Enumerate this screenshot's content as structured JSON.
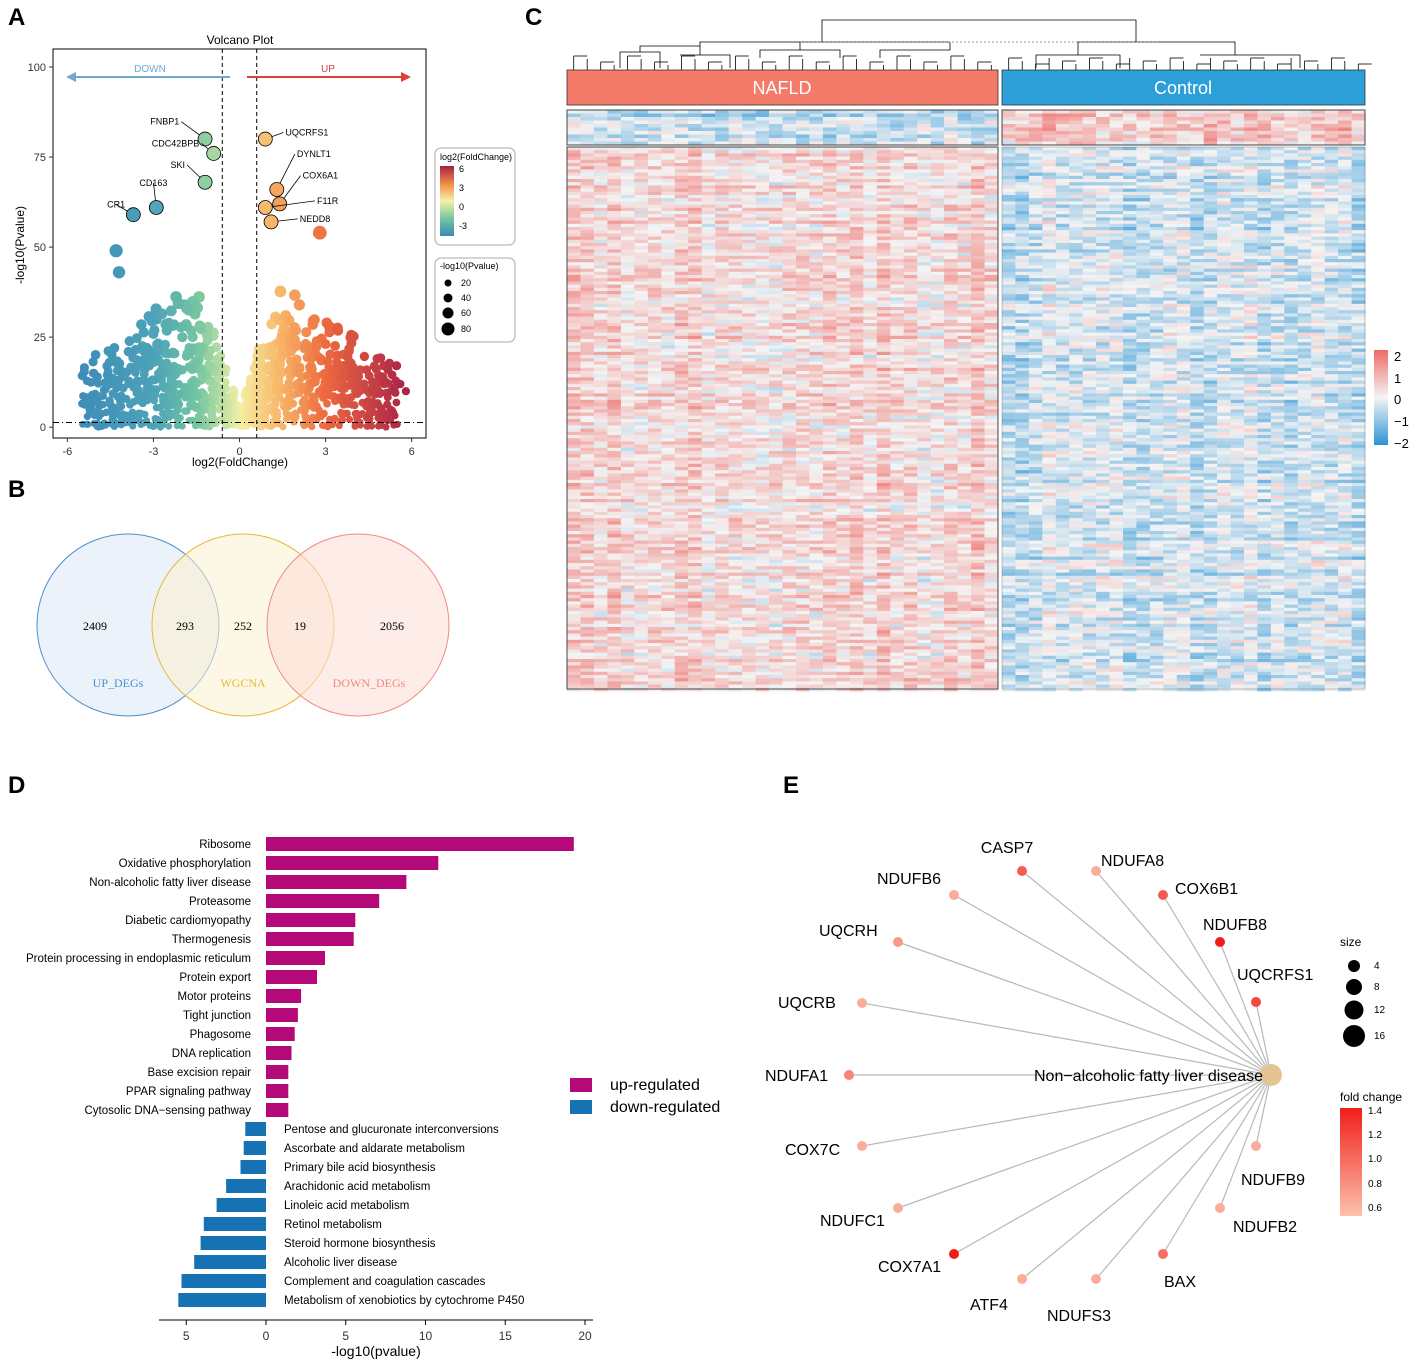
{
  "panels": {
    "a": "A",
    "b": "B",
    "c": "C",
    "d": "D",
    "e": "E"
  },
  "chart_data": [
    {
      "type": "scatter",
      "panel": "A",
      "title": "Volcano Plot",
      "xlabel": "log2(FoldChange)",
      "ylabel": "-log10(Pvalue)",
      "xlim": [
        -6.5,
        6.5
      ],
      "ylim": [
        -3,
        105
      ],
      "xticks": [
        "-6",
        "-3",
        "0",
        "3",
        "6"
      ],
      "yticks": [
        "0",
        "25",
        "50",
        "75",
        "100"
      ],
      "down_label": "DOWN",
      "up_label": "UP",
      "color_legend": {
        "title": "log2(FoldChange)",
        "ticks": [
          "6",
          "3",
          "0",
          "-3"
        ]
      },
      "size_legend": {
        "title": "-log10(Pvalue)",
        "ticks": [
          "20",
          "40",
          "60",
          "80"
        ]
      },
      "thresholds": {
        "fc": [
          -0.6,
          0.6
        ],
        "p": 1.3
      },
      "labeled_genes": [
        {
          "name": "FNBP1",
          "x": -1.2,
          "y": 80,
          "fc": -1.2
        },
        {
          "name": "CDC42BPB",
          "x": -0.9,
          "y": 76,
          "fc": -0.9
        },
        {
          "name": "SKI",
          "x": -1.2,
          "y": 68,
          "fc": -1.2
        },
        {
          "name": "CD163",
          "x": -2.9,
          "y": 61,
          "fc": -2.9
        },
        {
          "name": "CR1",
          "x": -3.7,
          "y": 59,
          "fc": -3.7
        },
        {
          "name": "UQCRFS1",
          "x": 0.9,
          "y": 80,
          "fc": 1.2
        },
        {
          "name": "DYNLT1",
          "x": 1.3,
          "y": 66,
          "fc": 1.8
        },
        {
          "name": "COX6A1",
          "x": 1.4,
          "y": 62,
          "fc": 1.9
        },
        {
          "name": "F11R",
          "x": 0.9,
          "y": 61,
          "fc": 1.4
        },
        {
          "name": "NEDD8",
          "x": 1.1,
          "y": 57,
          "fc": 1.5
        }
      ]
    },
    {
      "type": "heatmap",
      "panel": "C",
      "groups": [
        "NAFLD",
        "Control"
      ],
      "group_colors": [
        "#f47a6a",
        "#2c9fd9"
      ],
      "legend_ticks": [
        "2",
        "1",
        "0",
        "−1",
        "−2"
      ]
    },
    {
      "type": "bar",
      "panel": "D",
      "xlabel": "-log10(pvalue)",
      "xticks": [
        "5",
        "0",
        "5",
        "10",
        "15",
        "20"
      ],
      "legend": {
        "up": "up-regulated",
        "down": "down-regulated"
      },
      "colors": {
        "up": "#b5097a",
        "down": "#1672b3"
      },
      "up": [
        {
          "term": "Ribosome",
          "value": 19.3
        },
        {
          "term": "Oxidative phosphorylation",
          "value": 10.8
        },
        {
          "term": "Non-alcoholic fatty liver disease",
          "value": 8.8
        },
        {
          "term": "Proteasome",
          "value": 7.1
        },
        {
          "term": "Diabetic cardiomyopathy",
          "value": 5.6
        },
        {
          "term": "Thermogenesis",
          "value": 5.5
        },
        {
          "term": "Protein processing in endoplasmic reticulum",
          "value": 3.7
        },
        {
          "term": "Protein export",
          "value": 3.2
        },
        {
          "term": "Motor proteins",
          "value": 2.2
        },
        {
          "term": "Tight junction",
          "value": 2.0
        },
        {
          "term": "Phagosome",
          "value": 1.8
        },
        {
          "term": "DNA replication",
          "value": 1.6
        },
        {
          "term": "Base excision repair",
          "value": 1.4
        },
        {
          "term": "PPAR signaling pathway",
          "value": 1.4
        },
        {
          "term": "Cytosolic DNA−sensing pathway",
          "value": 1.4
        }
      ],
      "down": [
        {
          "term": "Pentose and glucuronate interconversions",
          "value": 1.3
        },
        {
          "term": "Ascorbate and aldarate metabolism",
          "value": 1.4
        },
        {
          "term": "Primary bile acid biosynthesis",
          "value": 1.6
        },
        {
          "term": "Arachidonic acid metabolism",
          "value": 2.5
        },
        {
          "term": "Linoleic acid metabolism",
          "value": 3.1
        },
        {
          "term": "Retinol metabolism",
          "value": 3.9
        },
        {
          "term": "Steroid hormone biosynthesis",
          "value": 4.1
        },
        {
          "term": "Alcoholic liver disease",
          "value": 4.5
        },
        {
          "term": "Complement and coagulation cascades",
          "value": 5.3
        },
        {
          "term": "Metabolism of xenobiotics by cytochrome P450",
          "value": 5.5
        }
      ]
    },
    {
      "type": "network",
      "panel": "E",
      "center": "Non−alcoholic fatty liver disease",
      "size_legend": {
        "title": "size",
        "ticks": [
          "4",
          "8",
          "12",
          "16"
        ]
      },
      "color_legend": {
        "title": "fold change",
        "ticks": [
          "1.4",
          "1.2",
          "1.0",
          "0.8",
          "0.6"
        ]
      },
      "genes": [
        {
          "name": "CASP7",
          "fc": 1.1
        },
        {
          "name": "NDUFA8",
          "fc": 0.7
        },
        {
          "name": "COX6B1",
          "fc": 1.1
        },
        {
          "name": "NDUFB8",
          "fc": 1.4
        },
        {
          "name": "UQCRFS1",
          "fc": 1.2
        },
        {
          "name": "NDUFB9",
          "fc": 0.7
        },
        {
          "name": "NDUFB2",
          "fc": 0.7
        },
        {
          "name": "BAX",
          "fc": 1.0
        },
        {
          "name": "NDUFS3",
          "fc": 0.7
        },
        {
          "name": "ATF4",
          "fc": 0.7
        },
        {
          "name": "COX7A1",
          "fc": 1.4
        },
        {
          "name": "NDUFC1",
          "fc": 0.7
        },
        {
          "name": "COX7C",
          "fc": 0.7
        },
        {
          "name": "NDUFA1",
          "fc": 0.9
        },
        {
          "name": "UQCRB",
          "fc": 0.7
        },
        {
          "name": "UQCRH",
          "fc": 0.8
        },
        {
          "name": "NDUFB6",
          "fc": 0.7
        }
      ]
    }
  ],
  "venn": {
    "sets": [
      {
        "name": "UP_DEGs",
        "color": "#4a8fd4"
      },
      {
        "name": "WGCNA",
        "color": "#e8b838"
      },
      {
        "name": "DOWN_DEGs",
        "color": "#f08a80"
      }
    ],
    "counts": [
      "2409",
      "293",
      "252",
      "19",
      "2056"
    ]
  }
}
